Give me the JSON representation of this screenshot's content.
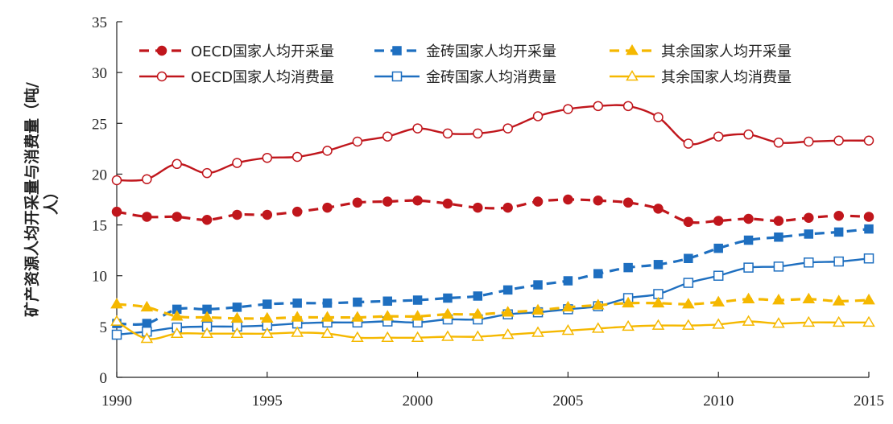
{
  "chart_data": {
    "type": "line",
    "title": "",
    "xlabel": "",
    "ylabel": "矿产资源人均开采量与消费量（吨/人）",
    "ylabel_lines": [
      "矿产资源人均开采量与消费量（吨/",
      "人）"
    ],
    "xlim": [
      1990,
      2015
    ],
    "ylim": [
      0,
      35
    ],
    "x_ticks": [
      1990,
      1995,
      2000,
      2005,
      2010,
      2015
    ],
    "x_tick_labels": [
      "1990",
      "1995",
      "2000",
      "2005",
      "2010",
      "2015"
    ],
    "y_ticks": [
      0,
      5,
      10,
      15,
      20,
      25,
      30,
      35
    ],
    "y_tick_labels": [
      "0",
      "5",
      "10",
      "15",
      "20",
      "25",
      "30",
      "35"
    ],
    "grid": false,
    "legend_position": "top",
    "x": [
      1990,
      1991,
      1992,
      1993,
      1994,
      1995,
      1996,
      1997,
      1998,
      1999,
      2000,
      2001,
      2002,
      2003,
      2004,
      2005,
      2006,
      2007,
      2008,
      2009,
      2010,
      2011,
      2012,
      2013,
      2014,
      2015
    ],
    "series": [
      {
        "name": "OECD国家人均开采量",
        "color": "#c0161c",
        "line_style": "dashed",
        "marker": "circle-filled",
        "values": [
          16.3,
          15.8,
          15.8,
          15.5,
          16.0,
          16.0,
          16.3,
          16.7,
          17.2,
          17.3,
          17.4,
          17.1,
          16.7,
          16.7,
          17.3,
          17.5,
          17.4,
          17.2,
          16.6,
          15.3,
          15.4,
          15.6,
          15.4,
          15.7,
          15.9,
          15.8
        ]
      },
      {
        "name": "OECD国家人均消费量",
        "color": "#c0161c",
        "line_style": "solid",
        "marker": "circle-open",
        "values": [
          19.4,
          19.5,
          21.0,
          20.1,
          21.1,
          21.6,
          21.7,
          22.3,
          23.2,
          23.7,
          24.5,
          24.0,
          24.0,
          24.5,
          25.7,
          26.4,
          26.7,
          26.7,
          25.6,
          23.0,
          23.7,
          23.9,
          23.1,
          23.2,
          23.3,
          23.3
        ]
      },
      {
        "name": "金砖国家人均开采量",
        "color": "#1e6fc0",
        "line_style": "dashed",
        "marker": "square-filled",
        "values": [
          5.3,
          5.3,
          6.7,
          6.7,
          6.9,
          7.2,
          7.3,
          7.3,
          7.4,
          7.5,
          7.6,
          7.8,
          8.0,
          8.6,
          9.1,
          9.5,
          10.2,
          10.8,
          11.1,
          11.7,
          12.7,
          13.5,
          13.8,
          14.1,
          14.3,
          14.6
        ]
      },
      {
        "name": "金砖国家人均消费量",
        "color": "#1e6fc0",
        "line_style": "solid",
        "marker": "square-open",
        "values": [
          4.2,
          4.5,
          4.9,
          5.0,
          5.0,
          5.1,
          5.3,
          5.4,
          5.4,
          5.5,
          5.4,
          5.7,
          5.7,
          6.2,
          6.4,
          6.7,
          7.0,
          7.8,
          8.2,
          9.3,
          10.0,
          10.8,
          10.9,
          11.3,
          11.4,
          11.7
        ]
      },
      {
        "name": "其余国家人均开采量",
        "color": "#f5b800",
        "line_style": "dashed",
        "marker": "triangle-filled",
        "values": [
          7.2,
          6.9,
          6.0,
          5.9,
          5.8,
          5.8,
          5.9,
          5.9,
          5.9,
          6.0,
          6.0,
          6.2,
          6.2,
          6.4,
          6.6,
          6.9,
          7.1,
          7.3,
          7.3,
          7.2,
          7.4,
          7.7,
          7.6,
          7.7,
          7.5,
          7.6
        ]
      },
      {
        "name": "其余国家人均消费量",
        "color": "#f5b800",
        "line_style": "solid",
        "marker": "triangle-open",
        "values": [
          5.5,
          3.8,
          4.3,
          4.3,
          4.3,
          4.3,
          4.4,
          4.3,
          3.9,
          3.9,
          3.9,
          4.0,
          4.0,
          4.2,
          4.4,
          4.6,
          4.8,
          5.0,
          5.1,
          5.1,
          5.2,
          5.5,
          5.3,
          5.4,
          5.4,
          5.4
        ]
      }
    ]
  }
}
